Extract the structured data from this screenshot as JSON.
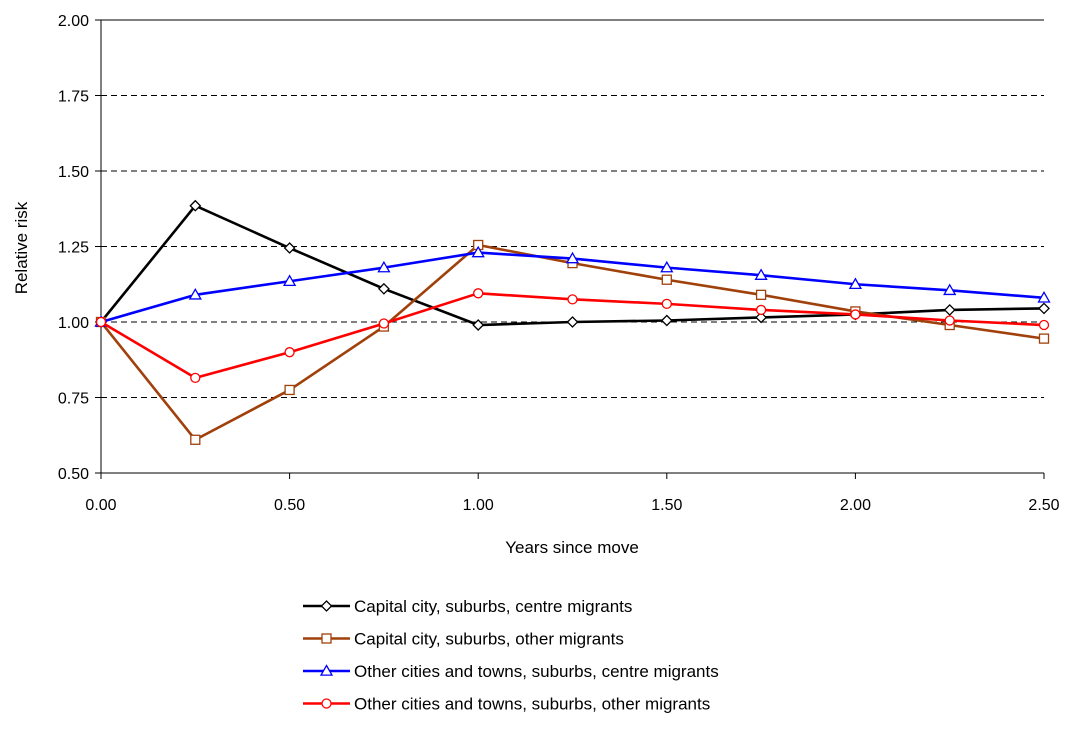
{
  "chart_data": {
    "type": "line",
    "title": "",
    "xlabel": "Years since move",
    "ylabel": "Relative risk",
    "xlim": [
      0,
      2.5
    ],
    "ylim": [
      0.5,
      2.0
    ],
    "x_ticks": [
      "0.00",
      "0.50",
      "1.00",
      "1.50",
      "2.00",
      "2.50"
    ],
    "y_ticks": [
      "0.50",
      "0.75",
      "1.00",
      "1.25",
      "1.50",
      "1.75",
      "2.00"
    ],
    "grid": "horizontal-dashed",
    "legend_position": "bottom",
    "x": [
      0,
      0.25,
      0.5,
      0.75,
      1.0,
      1.25,
      1.5,
      1.75,
      2.0,
      2.25,
      2.5
    ],
    "series": [
      {
        "name": "Capital city, suburbs, centre migrants",
        "color": "#000000",
        "marker": "diamond",
        "values": [
          1.0,
          1.385,
          1.245,
          1.11,
          0.99,
          1.0,
          1.005,
          1.015,
          1.025,
          1.04,
          1.045
        ]
      },
      {
        "name": "Capital city, suburbs, other migrants",
        "color": "#a0400a",
        "marker": "square",
        "values": [
          1.0,
          0.61,
          0.775,
          0.985,
          1.255,
          1.195,
          1.14,
          1.09,
          1.035,
          0.99,
          0.945
        ]
      },
      {
        "name": "Other cities and towns, suburbs, centre migrants",
        "color": "#0000ff",
        "marker": "triangle",
        "values": [
          1.0,
          1.09,
          1.135,
          1.18,
          1.23,
          1.21,
          1.18,
          1.155,
          1.125,
          1.105,
          1.08
        ]
      },
      {
        "name": "Other cities and towns, suburbs, other migrants",
        "color": "#ff0000",
        "marker": "circle",
        "values": [
          1.0,
          0.815,
          0.9,
          0.995,
          1.095,
          1.075,
          1.06,
          1.04,
          1.025,
          1.005,
          0.99
        ]
      }
    ]
  }
}
